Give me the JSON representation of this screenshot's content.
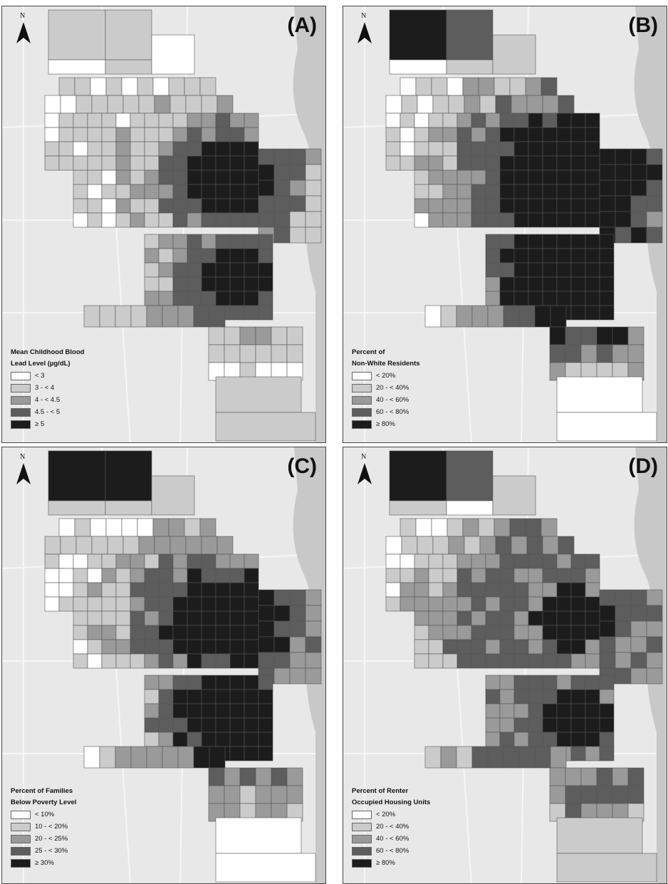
{
  "north_label": "N",
  "colors": {
    "class1": "#ffffff",
    "class2": "#cbcbcb",
    "class3": "#9a9a9a",
    "class4": "#5d5d5d",
    "class5": "#1c1c1c",
    "water": "#c8c8c8",
    "background": "#e8e8e8"
  },
  "panels": [
    {
      "label": "(A)",
      "legend_title_1": "Mean Childhood Blood",
      "legend_title_2": "Lead Level (µg/dL)",
      "legend": [
        "< 3",
        "3 - < 4",
        "4 - < 4.5",
        "4.5 - < 5",
        "≥ 5"
      ]
    },
    {
      "label": "(B)",
      "legend_title_1": "Percent of",
      "legend_title_2": "Non-White Residents",
      "legend": [
        "< 20%",
        "20 - < 40%",
        "40 - < 60%",
        "60 - < 80%",
        "≥ 80%"
      ]
    },
    {
      "label": "(C)",
      "legend_title_1": "Percent of Families",
      "legend_title_2": "Below Poverty Level",
      "legend": [
        "< 10%",
        "10 - < 20%",
        "20 - < 25%",
        "25 - < 30%",
        "≥ 30%"
      ]
    },
    {
      "label": "(D)",
      "legend_title_1": "Percent of Renter",
      "legend_title_2": "Occupied Housing Units",
      "legend": [
        "< 20%",
        "20 - < 40%",
        "40 - < 60%",
        "60 - < 80%",
        "≥ 80%"
      ]
    }
  ]
}
